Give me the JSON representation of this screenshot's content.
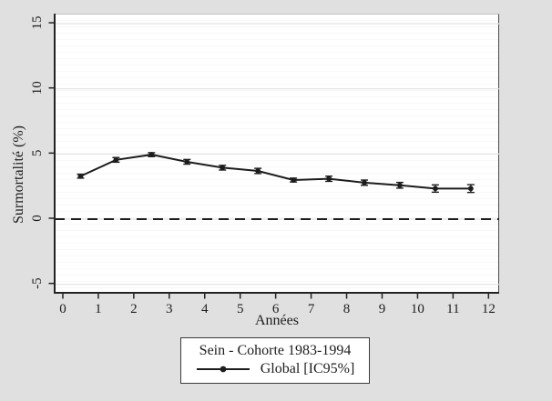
{
  "colors": {
    "page_background": "#e0e0e0",
    "plot_background": "#ffffff",
    "gridline": "#e2e2e2",
    "axis_line": "#222222",
    "series_line": "#1d1d1d",
    "text": "#1d1d1d",
    "legend_border": "#3c3c3c"
  },
  "chart_data": {
    "type": "line",
    "title": "",
    "xlabel": "Années",
    "ylabel": "Surmortalité (%)",
    "x": [
      0.5,
      1.5,
      2.5,
      3.5,
      4.5,
      5.5,
      6.5,
      7.5,
      8.5,
      9.5,
      10.5,
      11.5
    ],
    "series": [
      {
        "name": "Global [IC95%]",
        "values": [
          3.3,
          4.55,
          4.95,
          4.4,
          3.95,
          3.7,
          3.0,
          3.1,
          2.8,
          2.6,
          2.35,
          2.35
        ],
        "ci_low": [
          3.15,
          4.37,
          4.8,
          4.22,
          3.77,
          3.5,
          2.85,
          2.9,
          2.6,
          2.38,
          2.07,
          2.05
        ],
        "ci_high": [
          3.45,
          4.73,
          5.1,
          4.58,
          4.13,
          3.9,
          3.15,
          3.3,
          3.0,
          2.82,
          2.63,
          2.65
        ],
        "marker": "circle"
      }
    ],
    "reference_line_y": 0,
    "reference_line_style": "dashed",
    "xticks": [
      0,
      1,
      2,
      3,
      4,
      5,
      6,
      7,
      8,
      9,
      10,
      11,
      12
    ],
    "yticks": [
      -5,
      0,
      5,
      10,
      15
    ],
    "xlim": [
      -0.23,
      12.3
    ],
    "ylim": [
      -5.72,
      15.7
    ],
    "grid": true,
    "legend": {
      "position": "bottom",
      "title": "Sein - Cohorte 1983-1994",
      "entries": [
        "Global [IC95%]"
      ]
    }
  }
}
